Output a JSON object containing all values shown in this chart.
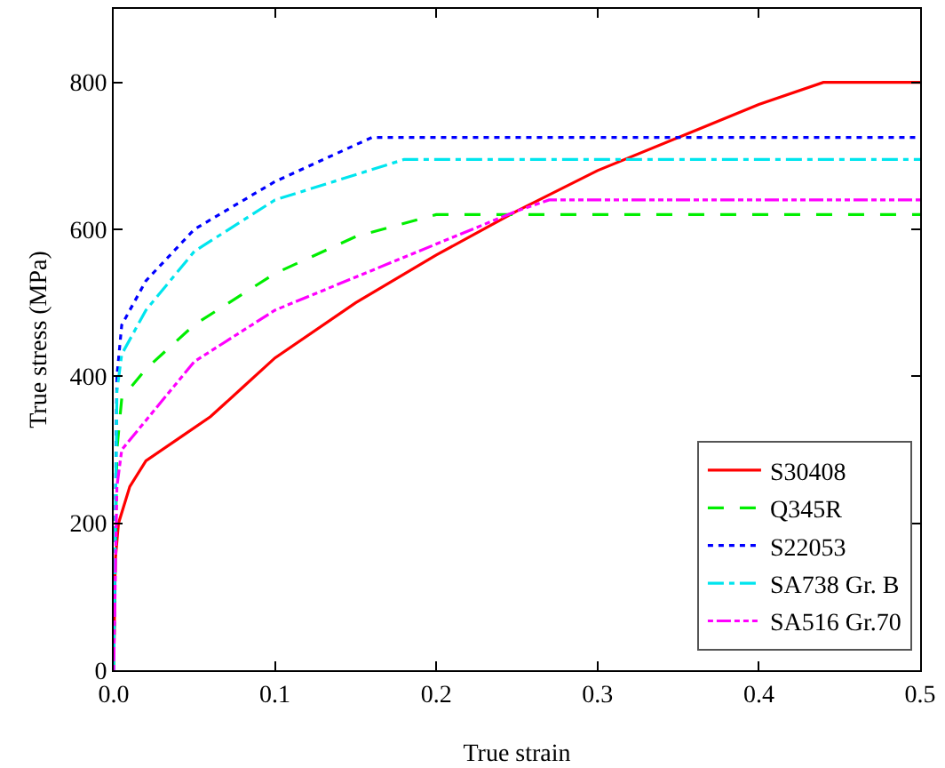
{
  "chart_data": {
    "type": "line",
    "xlabel": "True strain",
    "ylabel": "True stress (MPa)",
    "xlim": [
      0,
      0.5
    ],
    "xticks": [
      {
        "value": 0,
        "label": "0.0"
      },
      0.1,
      0.2,
      0.3,
      0.4,
      0.5
    ],
    "ylim": [
      0,
      900
    ],
    "yticks": [
      0,
      200,
      400,
      600,
      800
    ],
    "grid": false,
    "legend": "bottom right",
    "marker": "none",
    "series": [
      {
        "name": "S30408",
        "color": "#ff0000",
        "line_style": "solid",
        "x": [
          0,
          0.001,
          0.003,
          0.01,
          0.02,
          0.04,
          0.06,
          0.08,
          0.1,
          0.15,
          0.2,
          0.25,
          0.3,
          0.35,
          0.4,
          0.44,
          0.5
        ],
        "values": [
          0,
          150,
          200,
          250,
          285,
          315,
          345,
          385,
          425,
          500,
          565,
          625,
          680,
          725,
          770,
          800,
          800
        ]
      },
      {
        "name": "Q345R",
        "color": "#00ee00",
        "line_style": "dashed",
        "x": [
          0,
          0.002,
          0.005,
          0.02,
          0.05,
          0.1,
          0.15,
          0.2,
          0.5
        ],
        "values": [
          0,
          300,
          370,
          410,
          470,
          540,
          590,
          620,
          620
        ]
      },
      {
        "name": "S22053",
        "color": "#0000ff",
        "line_style": "dotted",
        "x": [
          0,
          0.002,
          0.005,
          0.02,
          0.05,
          0.1,
          0.16,
          0.5
        ],
        "values": [
          0,
          400,
          470,
          530,
          600,
          665,
          725,
          725
        ]
      },
      {
        "name": "SA738 Gr. B",
        "color": "#00e5ee",
        "line_style": "dashdot",
        "x": [
          0,
          0.002,
          0.005,
          0.02,
          0.05,
          0.1,
          0.18,
          0.5
        ],
        "values": [
          0,
          380,
          430,
          490,
          570,
          640,
          695,
          695
        ]
      },
      {
        "name": "SA516 Gr.70",
        "color": "#ff00ff",
        "line_style": "dashdotdot",
        "x": [
          0,
          0.002,
          0.005,
          0.02,
          0.05,
          0.1,
          0.15,
          0.2,
          0.25,
          0.27,
          0.5
        ],
        "values": [
          0,
          250,
          300,
          340,
          420,
          490,
          535,
          580,
          625,
          640,
          640
        ]
      }
    ]
  }
}
